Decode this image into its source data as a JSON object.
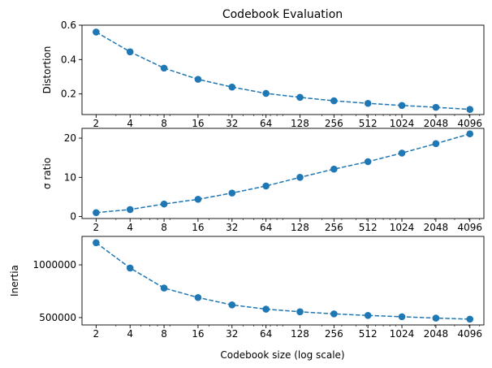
{
  "figure": {
    "title": "Codebook Evaluation",
    "xlabel": "Codebook size (log scale)"
  },
  "colors": {
    "series": "#1f77b4",
    "axes": "#000000",
    "background": "#ffffff"
  },
  "chart_data": [
    {
      "type": "line",
      "title": "Codebook Evaluation",
      "xlabel": "",
      "ylabel": "Distortion",
      "xscale": "log2",
      "marker": "circle",
      "linestyle": "dashed",
      "grid": false,
      "x": [
        2,
        4,
        8,
        16,
        32,
        64,
        128,
        256,
        512,
        1024,
        2048,
        4096
      ],
      "x_tick_labels": [
        "2",
        "4",
        "8",
        "16",
        "32",
        "64",
        "128",
        "256",
        "512",
        "1024",
        "2048",
        "4096"
      ],
      "values": [
        0.56,
        0.445,
        0.35,
        0.285,
        0.24,
        0.203,
        0.18,
        0.16,
        0.145,
        0.133,
        0.122,
        0.11
      ],
      "ylim": [
        0.08,
        0.6
      ],
      "y_ticks": [
        0.2,
        0.4,
        0.6
      ],
      "y_tick_labels": [
        "0.2",
        "0.4",
        "0.6"
      ]
    },
    {
      "type": "line",
      "title": "",
      "xlabel": "",
      "ylabel": "σ ratio",
      "xscale": "log2",
      "marker": "circle",
      "linestyle": "dashed",
      "grid": false,
      "x": [
        2,
        4,
        8,
        16,
        32,
        64,
        128,
        256,
        512,
        1024,
        2048,
        4096
      ],
      "x_tick_labels": [
        "2",
        "4",
        "8",
        "16",
        "32",
        "64",
        "128",
        "256",
        "512",
        "1024",
        "2048",
        "4096"
      ],
      "values": [
        1.0,
        1.8,
        3.2,
        4.4,
        6.0,
        7.8,
        10.0,
        12.1,
        14.0,
        16.2,
        18.6,
        21.1
      ],
      "ylim": [
        -0.5,
        22.5
      ],
      "y_ticks": [
        0,
        10,
        20
      ],
      "y_tick_labels": [
        "0",
        "10",
        "20"
      ]
    },
    {
      "type": "line",
      "title": "",
      "xlabel": "Codebook size (log scale)",
      "ylabel": "Inertia",
      "xscale": "log2",
      "marker": "circle",
      "linestyle": "dashed",
      "grid": false,
      "x": [
        2,
        4,
        8,
        16,
        32,
        64,
        128,
        256,
        512,
        1024,
        2048,
        4096
      ],
      "x_tick_labels": [
        "2",
        "4",
        "8",
        "16",
        "32",
        "64",
        "128",
        "256",
        "512",
        "1024",
        "2048",
        "4096"
      ],
      "values": [
        1210000,
        970000,
        780000,
        690000,
        620000,
        580000,
        555000,
        535000,
        520000,
        508000,
        495000,
        485000
      ],
      "ylim": [
        430000,
        1270000
      ],
      "y_ticks": [
        500000,
        1000000
      ],
      "y_tick_labels": [
        "500000",
        "1000000"
      ]
    }
  ]
}
